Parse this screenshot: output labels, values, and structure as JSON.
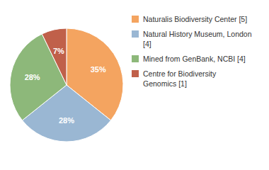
{
  "chart_data": {
    "type": "pie",
    "categories": [
      "Naturalis Biodiversity Center [5]",
      "Natural History Museum, London [4]",
      "Mined from GenBank, NCBI [4]",
      "Centre for Biodiversity\nGenomics [1]"
    ],
    "values": [
      35,
      28,
      28,
      7
    ],
    "value_labels": [
      "35%",
      "28%",
      "28%",
      "7%"
    ],
    "data_labels": true,
    "colors": [
      "#f4a460",
      "#9ab7d3",
      "#8db87a",
      "#c0604a"
    ],
    "legend": "right"
  }
}
